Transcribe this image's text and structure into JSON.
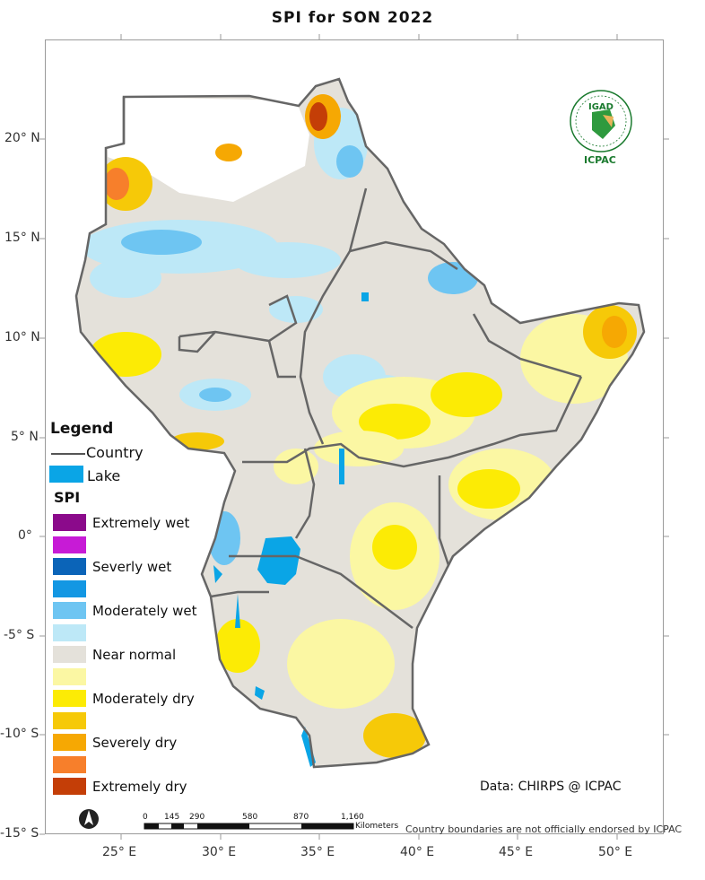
{
  "title": "SPI   for   SON 2022",
  "map": {
    "lat_labels": [
      "20° N",
      "15° N",
      "10° N",
      "5° N",
      "0°",
      "-5° S",
      "-10° S",
      "-15° S"
    ],
    "lon_labels": [
      "25° E",
      "30° E",
      "35° E",
      "40° E",
      "45° E",
      "50° E"
    ]
  },
  "legend": {
    "title": "Legend",
    "country": "Country",
    "lake": "Lake",
    "spi_title": "SPI",
    "classes": [
      {
        "label": "Extremely wet",
        "color": "#8B0A8B"
      },
      {
        "label": "",
        "color": "#C71BD6"
      },
      {
        "label": "Severly wet",
        "color": "#0B64B8"
      },
      {
        "label": "",
        "color": "#1397E3"
      },
      {
        "label": "Moderately wet",
        "color": "#6EC5F2"
      },
      {
        "label": "",
        "color": "#BDE8F7"
      },
      {
        "label": "Near normal",
        "color": "#E4E1DA"
      },
      {
        "label": "",
        "color": "#FBF7A3"
      },
      {
        "label": "Moderately dry",
        "color": "#FCEB05"
      },
      {
        "label": "",
        "color": "#F6C908"
      },
      {
        "label": "Severely dry",
        "color": "#F6A803"
      },
      {
        "label": "",
        "color": "#F77F2B"
      },
      {
        "label": "Extremely dry",
        "color": "#C43E07"
      }
    ],
    "lake_color": "#0AA5E6"
  },
  "logo": {
    "top": "IGAD",
    "bottom": "ICPAC"
  },
  "source": "Data: CHIRPS @ ICPAC",
  "scale": {
    "ticks": [
      "0",
      "145",
      "290",
      "580",
      "870",
      "1,160"
    ],
    "unit": "Kilometers"
  },
  "disclaimer": "Country boundaries are not officially endorsed by ICPAC"
}
